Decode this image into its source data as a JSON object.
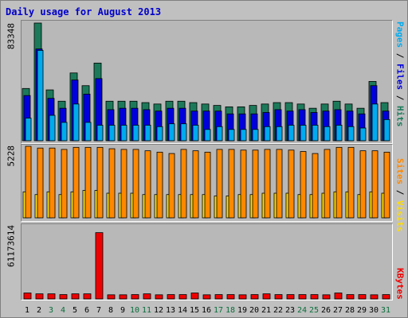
{
  "title": "Daily usage for August 2013",
  "colors": {
    "pages": "#00aaee",
    "files": "#0000dd",
    "hits": "#1c7a5a",
    "sites": "#ff8800",
    "visits": "#ffdd00",
    "kbytes": "#ee0000",
    "weekday_label": "#000000",
    "weekend_label": "#0a6e3c"
  },
  "labels": {
    "pages": "Pages",
    "files": "Files",
    "hits": "Hits",
    "sites": "Sites",
    "visits": "Visits",
    "kbytes": "KBytes",
    "sep": " / "
  },
  "axes": {
    "hits_max": "83348",
    "visits_max": "5228",
    "kbytes_max": "61173614"
  },
  "chart_data": [
    {
      "type": "bar",
      "title": "Daily usage for August 2013",
      "ylabel": "Pages / Files / Hits",
      "categories": [
        "1",
        "2",
        "3",
        "4",
        "5",
        "6",
        "7",
        "8",
        "9",
        "10",
        "11",
        "12",
        "13",
        "14",
        "15",
        "16",
        "17",
        "18",
        "19",
        "20",
        "21",
        "22",
        "23",
        "24",
        "25",
        "26",
        "27",
        "28",
        "29",
        "30",
        "31"
      ],
      "weekend_days": [
        3,
        4,
        10,
        11,
        17,
        18,
        24,
        25,
        31
      ],
      "ylim": [
        0,
        83348
      ],
      "series": [
        {
          "name": "Hits",
          "values": [
            37000,
            83348,
            36000,
            28000,
            48000,
            39000,
            55000,
            28000,
            28000,
            28000,
            27000,
            26000,
            28000,
            28000,
            27000,
            26000,
            25000,
            24000,
            24000,
            25000,
            26000,
            27000,
            27000,
            26000,
            23000,
            26000,
            28000,
            26000,
            23000,
            42000,
            27000
          ]
        },
        {
          "name": "Files",
          "values": [
            32000,
            65000,
            30000,
            23000,
            43000,
            33000,
            44000,
            22000,
            23000,
            23000,
            22000,
            21000,
            23000,
            23000,
            21000,
            21000,
            21000,
            19000,
            19000,
            19000,
            20000,
            22000,
            21000,
            22000,
            20000,
            21000,
            22000,
            21000,
            19000,
            39000,
            21000
          ]
        },
        {
          "name": "Pages",
          "values": [
            16000,
            64000,
            18000,
            13000,
            26000,
            13000,
            11000,
            11000,
            11000,
            11000,
            11000,
            10000,
            12000,
            12000,
            11000,
            8000,
            10000,
            8000,
            8000,
            8000,
            10000,
            10000,
            11000,
            11000,
            11000,
            10000,
            11000,
            10000,
            9000,
            26000,
            15000
          ]
        }
      ]
    },
    {
      "type": "bar",
      "ylabel": "Sites / Visits",
      "categories": [
        "1",
        "2",
        "3",
        "4",
        "5",
        "6",
        "7",
        "8",
        "9",
        "10",
        "11",
        "12",
        "13",
        "14",
        "15",
        "16",
        "17",
        "18",
        "19",
        "20",
        "21",
        "22",
        "23",
        "24",
        "25",
        "26",
        "27",
        "28",
        "29",
        "30",
        "31"
      ],
      "ylim": [
        0,
        5228
      ],
      "series": [
        {
          "name": "Visits",
          "values": [
            1900,
            1700,
            1900,
            1700,
            1900,
            2000,
            2000,
            1800,
            1800,
            1800,
            1700,
            1700,
            1700,
            1700,
            1700,
            1700,
            1600,
            1600,
            1700,
            1700,
            1800,
            1800,
            1800,
            1700,
            1700,
            1800,
            1900,
            1900,
            1700,
            1900,
            1800
          ]
        },
        {
          "name": "Sites",
          "values": [
            5228,
            5100,
            5100,
            5000,
            5150,
            5150,
            5150,
            5050,
            5000,
            5000,
            4900,
            4800,
            4700,
            5000,
            4900,
            4800,
            5000,
            5000,
            4950,
            4950,
            5000,
            5000,
            4950,
            4850,
            4700,
            5000,
            5150,
            5150,
            4900,
            4900,
            4800
          ]
        }
      ]
    },
    {
      "type": "bar",
      "ylabel": "KBytes",
      "categories": [
        "1",
        "2",
        "3",
        "4",
        "5",
        "6",
        "7",
        "8",
        "9",
        "10",
        "11",
        "12",
        "13",
        "14",
        "15",
        "16",
        "17",
        "18",
        "19",
        "20",
        "21",
        "22",
        "23",
        "24",
        "25",
        "26",
        "27",
        "28",
        "29",
        "30",
        "31"
      ],
      "ylim": [
        0,
        67500000
      ],
      "series": [
        {
          "name": "KBytes",
          "values": [
            5500000,
            4700000,
            4700000,
            4000000,
            4700000,
            4700000,
            61173614,
            3800000,
            3800000,
            4000000,
            4700000,
            3800000,
            4000000,
            4000000,
            5500000,
            3800000,
            4000000,
            4000000,
            3800000,
            4000000,
            4700000,
            4000000,
            4000000,
            4000000,
            4000000,
            3800000,
            5500000,
            4000000,
            4000000,
            3800000,
            4000000
          ]
        }
      ]
    }
  ]
}
